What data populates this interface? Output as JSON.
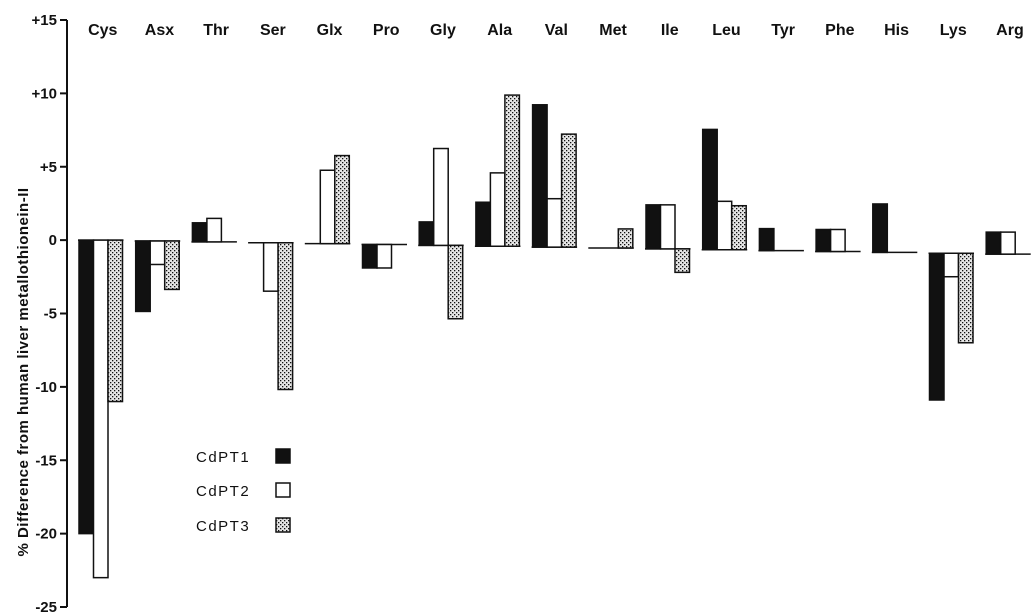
{
  "chart_data": {
    "type": "bar",
    "ylabel": "% Difference from human liver metallothionein-II",
    "ylim": [
      -25,
      15
    ],
    "yticks": [
      15,
      10,
      5,
      0,
      -5,
      -10,
      -15,
      -20,
      -25
    ],
    "ytick_labels": [
      "+15",
      "+10",
      "+5",
      "0",
      "-5",
      "-10",
      "-15",
      "-20",
      "-25"
    ],
    "categories": [
      "Cys",
      "Asx",
      "Thr",
      "Ser",
      "Glx",
      "Pro",
      "Gly",
      "Ala",
      "Val",
      "Met",
      "Ile",
      "Leu",
      "Tyr",
      "Phe",
      "His",
      "Lys",
      "Arg"
    ],
    "series": [
      {
        "name": "CdPT1",
        "fill": "solid",
        "values": [
          -20,
          -4.8,
          1.3,
          0,
          0,
          -1.6,
          1.6,
          3.0,
          9.7,
          0,
          3.0,
          8.2,
          1.5,
          1.5,
          3.3,
          -10.0,
          1.5
        ]
      },
      {
        "name": "CdPT2",
        "fill": "open",
        "values": [
          -23,
          -1.6,
          1.6,
          -3.3,
          5.0,
          -1.6,
          6.6,
          5.0,
          3.3,
          0,
          3.0,
          3.3,
          0,
          1.5,
          0,
          -1.6,
          1.5
        ]
      },
      {
        "name": "CdPT3",
        "fill": "stippled",
        "values": [
          -11.0,
          -3.3,
          0,
          -10.0,
          6.0,
          0,
          -5.0,
          10.3,
          7.7,
          1.3,
          -1.6,
          3.0,
          0,
          0,
          0,
          -6.1,
          0
        ]
      }
    ],
    "legend": {
      "placement": "lower-left-inside"
    },
    "grid": false
  },
  "colors": {
    "solid": "#111111",
    "open": "#ffffff",
    "stroke": "#111111",
    "stipple_dot": "#111111",
    "stipple_bg": "#e6e6e6"
  }
}
